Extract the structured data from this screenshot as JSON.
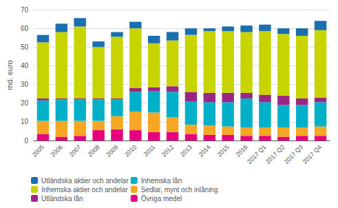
{
  "chart_data": {
    "type": "bar",
    "stacked": true,
    "categories": [
      "2005",
      "2006",
      "2007",
      "2008",
      "2009",
      "2010",
      "2011",
      "2012",
      "2013",
      "2014",
      "2015",
      "2016",
      "2017 Q1",
      "2017 Q2",
      "2017 Q3",
      "2017 Q4"
    ],
    "series": [
      {
        "name": "Övriga medel",
        "color": "#e6007e",
        "values": [
          3.5,
          2.0,
          2.5,
          5.5,
          6.0,
          5.5,
          4.5,
          4.5,
          3.5,
          3.0,
          3.0,
          2.5,
          2.5,
          2.0,
          2.5,
          2.5
        ]
      },
      {
        "name": "Sedlar, mynt och inlåning",
        "color": "#f5a623",
        "values": [
          7.0,
          8.5,
          8.0,
          5.0,
          7.0,
          10.0,
          10.5,
          8.0,
          5.0,
          5.0,
          4.5,
          4.5,
          4.5,
          5.0,
          4.5,
          5.0
        ]
      },
      {
        "name": "Inhemska lån",
        "color": "#00b0c8",
        "values": [
          11.0,
          11.5,
          11.5,
          11.5,
          9.0,
          10.5,
          11.5,
          13.5,
          12.5,
          12.5,
          13.0,
          15.5,
          13.5,
          12.0,
          12.0,
          13.0
        ]
      },
      {
        "name": "Utländska lån",
        "color": "#9b2585",
        "values": [
          1.0,
          0.5,
          0.5,
          0.5,
          0.5,
          2.0,
          2.0,
          3.0,
          5.0,
          5.0,
          5.0,
          3.0,
          4.0,
          5.0,
          3.5,
          2.5
        ]
      },
      {
        "name": "Inhemska aktier och andelar",
        "color": "#c8d400",
        "values": [
          30.0,
          35.5,
          38.5,
          27.5,
          33.0,
          32.0,
          23.5,
          24.5,
          30.5,
          33.0,
          33.0,
          32.5,
          34.0,
          33.0,
          33.5,
          36.0
        ]
      },
      {
        "name": "Utländska aktier och andelar",
        "color": "#1a6faf",
        "values": [
          4.0,
          4.5,
          4.5,
          3.0,
          2.5,
          3.5,
          4.0,
          4.5,
          3.5,
          1.5,
          2.5,
          3.5,
          3.5,
          3.0,
          4.0,
          5.0
        ]
      }
    ],
    "ylabel": "md. euro",
    "ylim": [
      0,
      70
    ],
    "yticks": [
      0,
      10,
      20,
      30,
      40,
      50,
      60,
      70
    ],
    "grid": true,
    "legend": "bottom"
  }
}
